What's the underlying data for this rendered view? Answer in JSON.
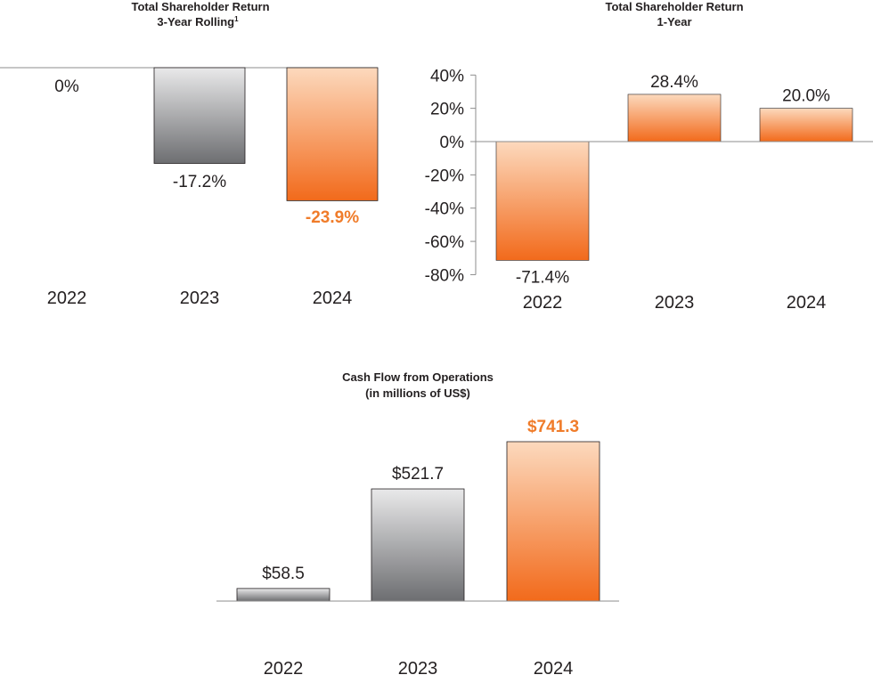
{
  "colors": {
    "highlight": "#f07c2a",
    "text": "#231f20",
    "axis": "#8c8c8c"
  },
  "chart_data": [
    {
      "type": "bar",
      "title": "Total Shareholder Return",
      "subtitle": "3-Year Rolling",
      "footnote_marker": "1",
      "unit": "%",
      "categories": [
        "2022",
        "2023",
        "2024"
      ],
      "values": [
        0,
        -17.2,
        -23.9
      ],
      "value_labels": [
        "0%",
        "-17.2%",
        "-23.9%"
      ],
      "bar_styles": [
        "gray",
        "gray",
        "orange"
      ],
      "highlight_index": 2,
      "ylim": [
        -35,
        0
      ],
      "grid": false
    },
    {
      "type": "bar",
      "title": "Total Shareholder Return",
      "subtitle": "1-Year",
      "unit": "%",
      "categories": [
        "2022",
        "2023",
        "2024"
      ],
      "values": [
        -71.4,
        28.4,
        20.0
      ],
      "value_labels": [
        "-71.4%",
        "28.4%",
        "20.0%"
      ],
      "bar_styles": [
        "orange",
        "orange",
        "orange"
      ],
      "yticks": [
        40,
        20,
        0,
        -20,
        -40,
        -60,
        -80
      ],
      "ytick_labels": [
        "40%",
        "20%",
        "0%",
        "-20%",
        "-40%",
        "-60%",
        "-80%"
      ],
      "ylim": [
        -80,
        40
      ],
      "grid": false
    },
    {
      "type": "bar",
      "title": "Cash Flow from Operations",
      "subtitle": "(in millions of US$)",
      "unit": "US$ millions",
      "categories": [
        "2022",
        "2023",
        "2024"
      ],
      "values": [
        58.5,
        521.7,
        741.3
      ],
      "value_labels": [
        "$58.5",
        "$521.7",
        "$741.3"
      ],
      "bar_styles": [
        "gray",
        "gray",
        "orange"
      ],
      "highlight_index": 2,
      "ylim": [
        0,
        741.3
      ],
      "grid": false
    }
  ]
}
